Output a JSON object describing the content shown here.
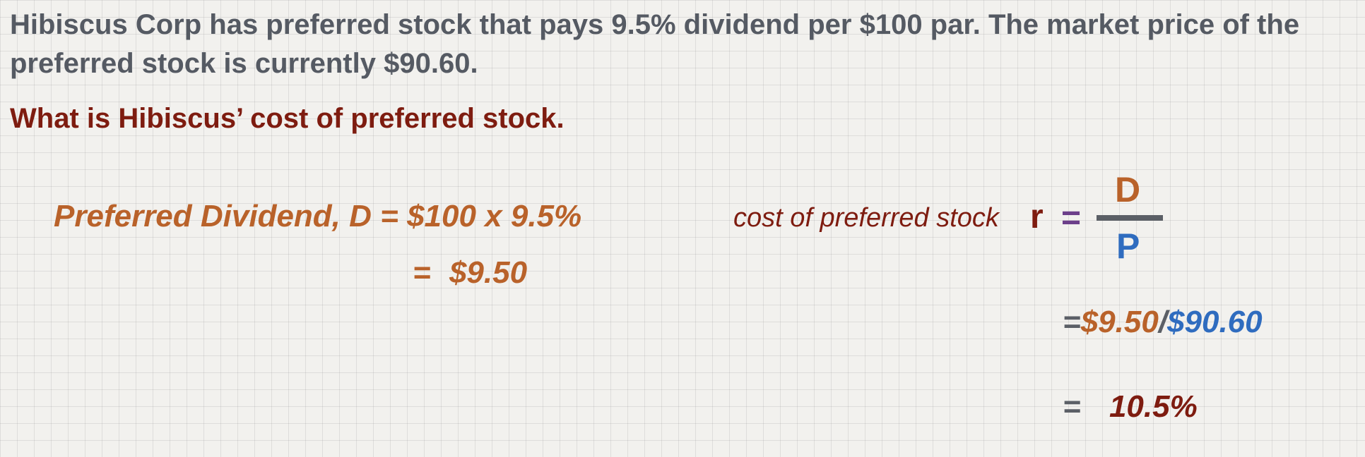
{
  "problem": {
    "text": "Hibiscus Corp has preferred stock that pays 9.5% dividend per $100 par.  The market price of the preferred stock is currently $90.60.",
    "question": "What is Hibiscus’ cost of preferred stock."
  },
  "dividend": {
    "label": "Preferred Dividend, D",
    "equals": "=",
    "expression": "$100 x 9.5%",
    "result_equals": "=",
    "result": "$9.50"
  },
  "cost_formula": {
    "label": "cost of preferred stock",
    "variable": "r",
    "equals": "=",
    "numerator": "D",
    "denominator": "P"
  },
  "calculation": {
    "equals": "=",
    "dividend_value": "$9.50",
    "divide": "/",
    "price_value": "$90.60"
  },
  "result": {
    "equals": "=",
    "value": "10.5%"
  },
  "colors": {
    "problem_text": "#555a63",
    "question_text": "#7e1c10",
    "dividend": "#b9622a",
    "price": "#2f6cbf",
    "result": "#7e1c10",
    "operator": "#5b5f66",
    "equals_formula": "#6c3f8a"
  }
}
